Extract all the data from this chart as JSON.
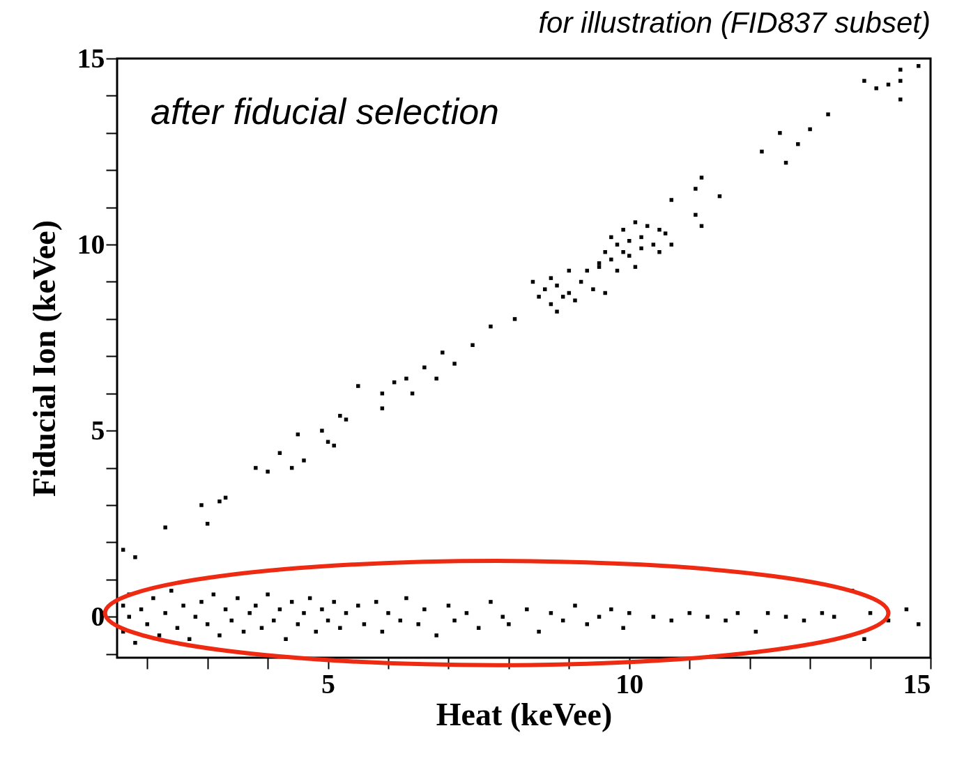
{
  "chart_data": {
    "type": "scatter",
    "xlabel": "Heat (keVee)",
    "ylabel": "Fiducial Ion (keVee)",
    "annotations": [
      "for illustration (FID837 subset)",
      "after fiducial selection"
    ],
    "xlim": [
      1.5,
      15
    ],
    "ylim": [
      -1.1,
      15
    ],
    "grid": false,
    "marker": "square",
    "xticks": [
      {
        "value": 2,
        "label": null
      },
      {
        "value": 3,
        "label": null
      },
      {
        "value": 4,
        "label": null
      },
      5,
      {
        "value": 6,
        "label": null
      },
      {
        "value": 7,
        "label": null
      },
      {
        "value": 8,
        "label": null
      },
      {
        "value": 9,
        "label": null
      },
      10,
      {
        "value": 11,
        "label": null
      },
      {
        "value": 12,
        "label": null
      },
      {
        "value": 13,
        "label": null
      },
      {
        "value": 14,
        "label": null
      },
      15
    ],
    "yticks": [
      {
        "value": -1,
        "label": null
      },
      0,
      {
        "value": 1,
        "label": null
      },
      {
        "value": 2,
        "label": null
      },
      {
        "value": 3,
        "label": null
      },
      {
        "value": 4,
        "label": null
      },
      5,
      {
        "value": 6,
        "label": null
      },
      {
        "value": 7,
        "label": null
      },
      {
        "value": 8,
        "label": null
      },
      {
        "value": 9,
        "label": null
      },
      10,
      {
        "value": 11,
        "label": null
      },
      {
        "value": 12,
        "label": null
      },
      {
        "value": 13,
        "label": null
      },
      {
        "value": 14,
        "label": null
      },
      15
    ],
    "series": [
      {
        "color": "#000000",
        "x": [
          1.6,
          1.8,
          2.3,
          2.9,
          3.0,
          3.2,
          3.3,
          3.8,
          4.0,
          4.2,
          4.4,
          4.5,
          4.6,
          4.9,
          5.0,
          5.1,
          5.2,
          5.3,
          5.5,
          5.9,
          5.9,
          6.1,
          6.3,
          6.4,
          6.6,
          6.8,
          6.9,
          7.1,
          7.4,
          7.7,
          8.1,
          8.4,
          8.5,
          8.6,
          8.7,
          8.7,
          8.8,
          8.8,
          8.9,
          9.0,
          9.0,
          9.1,
          9.2,
          9.3,
          9.4,
          9.5,
          9.6,
          9.6,
          9.7,
          9.7,
          9.8,
          9.8,
          9.9,
          9.9,
          10.0,
          10.0,
          10.1,
          10.1,
          10.2,
          10.2,
          10.3,
          10.4,
          10.5,
          10.5,
          10.6,
          10.7,
          9.5,
          10.7,
          11.1,
          11.1,
          11.2,
          11.2,
          11.5,
          12.2,
          12.5,
          12.6,
          12.8,
          13.0,
          13.3,
          13.9,
          14.1,
          14.3,
          14.5,
          14.5,
          14.5,
          14.8,
          1.6,
          1.6,
          1.7,
          1.7,
          1.8,
          1.9,
          2.0,
          2.1,
          2.2,
          2.3,
          2.4,
          2.5,
          2.6,
          2.7,
          2.8,
          2.9,
          3.0,
          3.1,
          3.2,
          3.3,
          3.4,
          3.5,
          3.6,
          3.7,
          3.8,
          3.9,
          4.0,
          4.1,
          4.2,
          4.3,
          4.4,
          4.5,
          4.6,
          4.7,
          4.8,
          4.9,
          5.0,
          5.1,
          5.2,
          5.3,
          5.5,
          5.6,
          5.8,
          5.9,
          6.0,
          6.2,
          6.3,
          6.5,
          6.6,
          6.8,
          7.0,
          7.1,
          7.3,
          7.5,
          7.7,
          7.9,
          8.0,
          8.3,
          8.5,
          8.7,
          8.9,
          9.1,
          9.3,
          9.5,
          9.7,
          9.9,
          10.0,
          10.4,
          10.7,
          11.0,
          11.3,
          11.6,
          11.8,
          12.1,
          12.3,
          12.6,
          12.9,
          13.2,
          13.4,
          13.7,
          13.9,
          14.0,
          14.3,
          14.6,
          14.8
        ],
        "values": [
          1.8,
          1.6,
          2.4,
          3.0,
          2.5,
          3.1,
          3.2,
          4.0,
          3.9,
          4.4,
          4.0,
          4.9,
          4.2,
          5.0,
          4.7,
          4.6,
          5.4,
          5.3,
          6.2,
          6.0,
          5.6,
          6.3,
          6.4,
          6.0,
          6.7,
          6.4,
          7.1,
          6.8,
          7.3,
          7.8,
          8.0,
          9.0,
          8.6,
          8.8,
          8.4,
          9.1,
          8.2,
          8.9,
          8.6,
          8.7,
          9.3,
          8.5,
          9.0,
          9.3,
          8.8,
          9.5,
          9.8,
          8.7,
          10.2,
          9.6,
          10.0,
          9.3,
          10.4,
          9.8,
          10.1,
          9.7,
          10.6,
          9.4,
          10.2,
          9.9,
          10.5,
          10.0,
          9.8,
          10.4,
          10.3,
          10.0,
          9.4,
          11.2,
          10.8,
          11.5,
          11.8,
          10.5,
          11.3,
          12.5,
          13.0,
          12.2,
          12.7,
          13.1,
          13.5,
          14.4,
          14.2,
          14.3,
          13.9,
          14.7,
          14.4,
          14.8,
          0.3,
          -0.4,
          0.0,
          0.6,
          -0.7,
          0.2,
          -0.2,
          0.5,
          -0.5,
          0.1,
          0.7,
          -0.3,
          0.3,
          -0.6,
          0.0,
          0.4,
          -0.2,
          0.6,
          -0.5,
          0.2,
          -0.1,
          0.5,
          -0.4,
          0.1,
          0.3,
          -0.3,
          0.6,
          -0.1,
          0.2,
          -0.6,
          0.4,
          -0.2,
          0.1,
          0.5,
          -0.4,
          0.2,
          -0.1,
          0.4,
          -0.3,
          0.1,
          0.3,
          -0.2,
          0.4,
          -0.4,
          0.1,
          -0.1,
          0.5,
          -0.2,
          0.2,
          -0.5,
          0.3,
          -0.1,
          0.1,
          -0.3,
          0.4,
          0.0,
          -0.2,
          0.2,
          -0.4,
          0.1,
          -0.1,
          0.3,
          -0.2,
          0.0,
          0.2,
          -0.3,
          0.1,
          0.0,
          -0.1,
          0.1,
          0.0,
          -0.1,
          0.1,
          -0.4,
          0.1,
          0.0,
          -0.1,
          0.1,
          0.0,
          0.7,
          -0.6,
          0.1,
          -0.1,
          0.2,
          -0.2
        ]
      }
    ]
  }
}
